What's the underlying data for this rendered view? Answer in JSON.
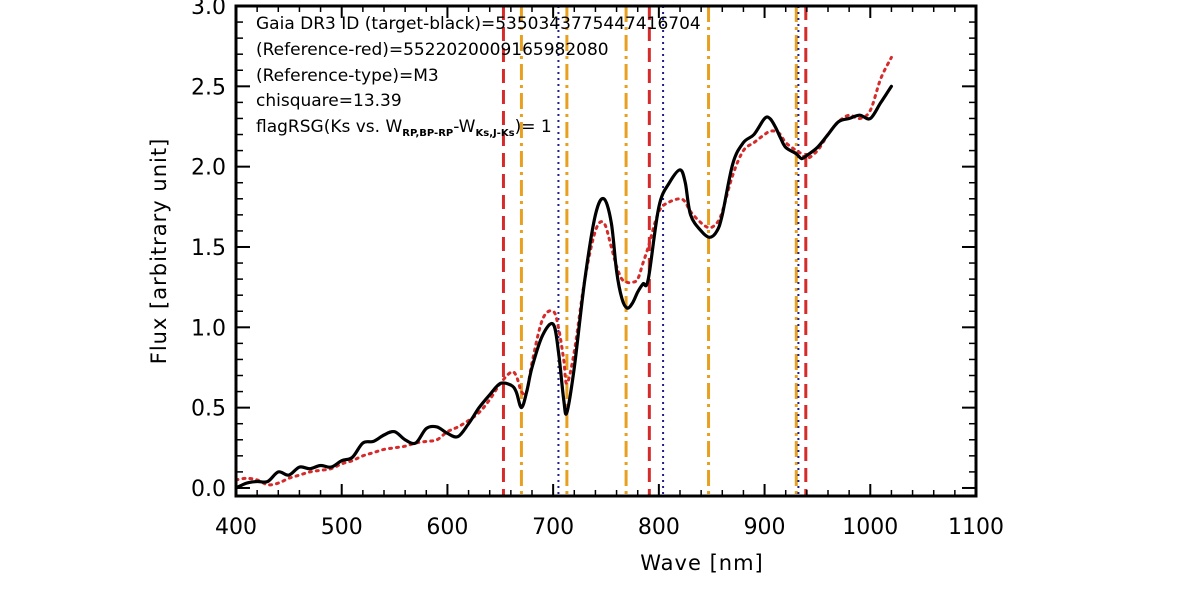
{
  "chart_data": {
    "type": "line",
    "xlabel": "Wave [nm]",
    "ylabel": "Flux [arbitrary unit]",
    "xlim": [
      400,
      1100
    ],
    "ylim": [
      -0.05,
      3.0
    ],
    "x_ticks": [
      400,
      500,
      600,
      700,
      800,
      900,
      1000,
      1100
    ],
    "x_tick_labels": [
      "400",
      "500",
      "600",
      "700",
      "800",
      "900",
      "1000",
      "1100"
    ],
    "y_ticks": [
      0.0,
      0.5,
      1.0,
      1.5,
      2.0,
      2.5,
      3.0
    ],
    "y_tick_labels": [
      "0.0",
      "0.5",
      "1.0",
      "1.5",
      "2.0",
      "2.5",
      "3.0"
    ],
    "annotations": {
      "line1": "Gaia DR3 ID (target-black)=5350343775447416704",
      "line2": "(Reference-red)=5522020009165982080",
      "line3": "(Reference-type)=M3",
      "line4": "chisquare=13.39",
      "line5_a": "flagRSG(Ks vs. W",
      "line5_sub1": "RP,BP-RP",
      "line5_b": "-W",
      "line5_sub2": "Ks,J-Ks",
      "line5_c": ")= 1"
    },
    "series": [
      {
        "style": "solid",
        "color": "#000000",
        "x": [
          400,
          410,
          420,
          430,
          440,
          450,
          460,
          470,
          480,
          490,
          500,
          510,
          520,
          530,
          540,
          550,
          560,
          570,
          580,
          590,
          600,
          610,
          620,
          630,
          640,
          650,
          660,
          665,
          670,
          675,
          680,
          690,
          700,
          705,
          710,
          713,
          720,
          730,
          740,
          748,
          755,
          760,
          765,
          770,
          775,
          780,
          785,
          790,
          800,
          810,
          820,
          825,
          830,
          840,
          848,
          855,
          860,
          870,
          880,
          890,
          900,
          905,
          910,
          915,
          920,
          930,
          935,
          940,
          950,
          960,
          970,
          980,
          990,
          1000,
          1010,
          1020
        ],
        "y": [
          0.0,
          0.03,
          0.04,
          0.04,
          0.1,
          0.08,
          0.13,
          0.12,
          0.14,
          0.13,
          0.17,
          0.19,
          0.28,
          0.29,
          0.33,
          0.35,
          0.3,
          0.28,
          0.37,
          0.38,
          0.34,
          0.32,
          0.4,
          0.5,
          0.58,
          0.65,
          0.64,
          0.6,
          0.5,
          0.6,
          0.75,
          0.95,
          1.02,
          0.85,
          0.55,
          0.47,
          0.75,
          1.3,
          1.7,
          1.8,
          1.65,
          1.35,
          1.18,
          1.12,
          1.15,
          1.22,
          1.27,
          1.3,
          1.75,
          1.9,
          1.98,
          1.9,
          1.7,
          1.6,
          1.56,
          1.6,
          1.7,
          2.02,
          2.15,
          2.2,
          2.3,
          2.3,
          2.25,
          2.18,
          2.12,
          2.08,
          2.05,
          2.07,
          2.12,
          2.2,
          2.28,
          2.3,
          2.32,
          2.3,
          2.4,
          2.5
        ]
      },
      {
        "style": "dotted",
        "color": "#d62b2b",
        "x": [
          400,
          410,
          420,
          430,
          440,
          450,
          460,
          470,
          480,
          490,
          500,
          510,
          520,
          530,
          540,
          550,
          560,
          570,
          580,
          590,
          600,
          610,
          620,
          630,
          640,
          650,
          660,
          665,
          670,
          675,
          680,
          690,
          700,
          705,
          710,
          713,
          720,
          730,
          740,
          748,
          755,
          760,
          765,
          770,
          775,
          780,
          785,
          790,
          800,
          810,
          820,
          825,
          830,
          840,
          848,
          855,
          860,
          870,
          880,
          890,
          900,
          905,
          910,
          915,
          920,
          930,
          935,
          940,
          950,
          960,
          970,
          980,
          990,
          1000,
          1010,
          1020
        ],
        "y": [
          0.05,
          0.06,
          0.05,
          0.02,
          0.03,
          0.06,
          0.08,
          0.1,
          0.11,
          0.12,
          0.15,
          0.17,
          0.2,
          0.22,
          0.24,
          0.25,
          0.26,
          0.28,
          0.29,
          0.3,
          0.35,
          0.38,
          0.42,
          0.47,
          0.55,
          0.65,
          0.72,
          0.7,
          0.6,
          0.6,
          0.78,
          1.05,
          1.1,
          1.0,
          0.8,
          0.65,
          0.85,
          1.3,
          1.6,
          1.65,
          1.5,
          1.38,
          1.3,
          1.28,
          1.28,
          1.3,
          1.4,
          1.5,
          1.72,
          1.78,
          1.8,
          1.78,
          1.72,
          1.65,
          1.62,
          1.65,
          1.72,
          1.95,
          2.1,
          2.15,
          2.2,
          2.22,
          2.22,
          2.2,
          2.15,
          2.1,
          2.08,
          2.05,
          2.1,
          2.2,
          2.28,
          2.32,
          2.3,
          2.35,
          2.55,
          2.68
        ]
      }
    ],
    "vertical_lines": [
      {
        "x": 653,
        "style": "dashed",
        "color": "#d62b2b"
      },
      {
        "x": 670,
        "style": "dashdot",
        "color": "#e8a020"
      },
      {
        "x": 705,
        "style": "dotted",
        "color": "#1e1e8c"
      },
      {
        "x": 713,
        "style": "dashdot",
        "color": "#e8a020"
      },
      {
        "x": 769,
        "style": "dashdot",
        "color": "#e8a020"
      },
      {
        "x": 791,
        "style": "dashed",
        "color": "#d62b2b"
      },
      {
        "x": 804,
        "style": "dotted",
        "color": "#1e1e8c"
      },
      {
        "x": 847,
        "style": "dashdot",
        "color": "#e8a020"
      },
      {
        "x": 930,
        "style": "dashdot",
        "color": "#e8a020"
      },
      {
        "x": 932,
        "style": "dotted",
        "color": "#1e1e8c"
      },
      {
        "x": 939,
        "style": "dashed",
        "color": "#d62b2b"
      }
    ]
  }
}
